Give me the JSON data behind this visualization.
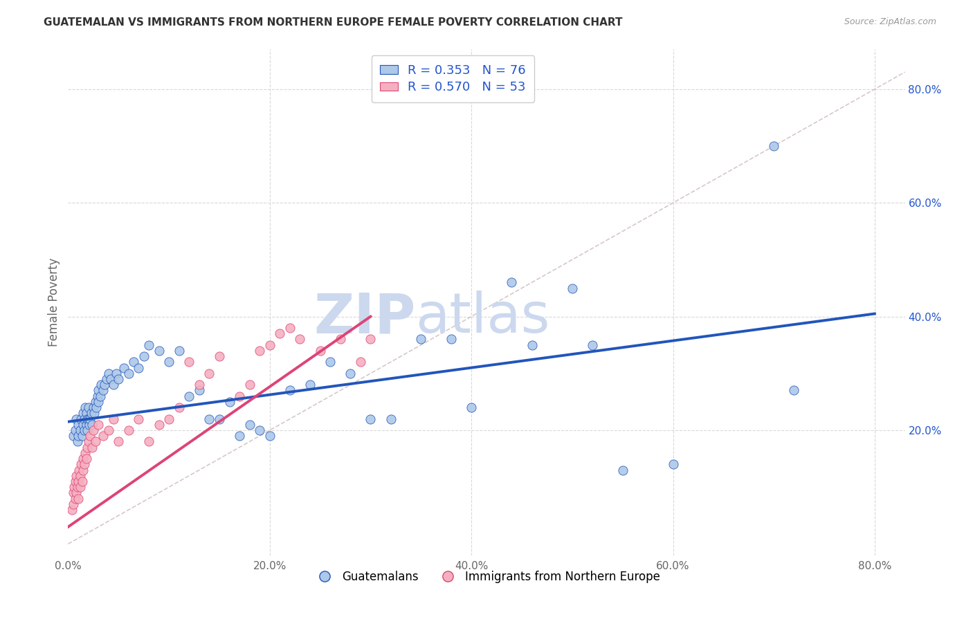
{
  "title": "GUATEMALAN VS IMMIGRANTS FROM NORTHERN EUROPE FEMALE POVERTY CORRELATION CHART",
  "source": "Source: ZipAtlas.com",
  "ylabel": "Female Poverty",
  "xlim": [
    0.0,
    0.83
  ],
  "ylim": [
    -0.02,
    0.87
  ],
  "xticks": [
    0.0,
    0.2,
    0.4,
    0.6,
    0.8
  ],
  "yticks_right": [
    0.2,
    0.4,
    0.6,
    0.8
  ],
  "background_color": "#ffffff",
  "grid_color": "#d8d8d8",
  "legend1_label": "R = 0.353   N = 76",
  "legend2_label": "R = 0.570   N = 53",
  "legend_color": "#2255cc",
  "scatter_blue_color": "#adc8e8",
  "scatter_pink_color": "#f5b0c0",
  "line_blue_color": "#2255bb",
  "line_pink_color": "#dd4477",
  "diagonal_color": "#ccbbbb",
  "watermark_zip": "ZIP",
  "watermark_atlas": "atlas",
  "watermark_color": "#ccd8ee",
  "blue_scatter_x": [
    0.005,
    0.007,
    0.008,
    0.009,
    0.01,
    0.01,
    0.012,
    0.013,
    0.014,
    0.015,
    0.015,
    0.016,
    0.016,
    0.017,
    0.018,
    0.018,
    0.019,
    0.019,
    0.02,
    0.02,
    0.021,
    0.022,
    0.023,
    0.024,
    0.025,
    0.026,
    0.027,
    0.028,
    0.029,
    0.03,
    0.03,
    0.032,
    0.033,
    0.035,
    0.036,
    0.038,
    0.04,
    0.042,
    0.045,
    0.048,
    0.05,
    0.055,
    0.06,
    0.065,
    0.07,
    0.075,
    0.08,
    0.09,
    0.1,
    0.11,
    0.12,
    0.13,
    0.14,
    0.15,
    0.16,
    0.17,
    0.18,
    0.19,
    0.2,
    0.22,
    0.24,
    0.26,
    0.28,
    0.3,
    0.32,
    0.35,
    0.38,
    0.4,
    0.44,
    0.46,
    0.5,
    0.52,
    0.55,
    0.6,
    0.7,
    0.72
  ],
  "blue_scatter_y": [
    0.19,
    0.2,
    0.22,
    0.18,
    0.21,
    0.19,
    0.2,
    0.22,
    0.19,
    0.23,
    0.21,
    0.22,
    0.2,
    0.24,
    0.21,
    0.23,
    0.22,
    0.2,
    0.22,
    0.24,
    0.21,
    0.22,
    0.23,
    0.21,
    0.24,
    0.23,
    0.25,
    0.24,
    0.26,
    0.25,
    0.27,
    0.26,
    0.28,
    0.27,
    0.28,
    0.29,
    0.3,
    0.29,
    0.28,
    0.3,
    0.29,
    0.31,
    0.3,
    0.32,
    0.31,
    0.33,
    0.35,
    0.34,
    0.32,
    0.34,
    0.26,
    0.27,
    0.22,
    0.22,
    0.25,
    0.19,
    0.21,
    0.2,
    0.19,
    0.27,
    0.28,
    0.32,
    0.3,
    0.22,
    0.22,
    0.36,
    0.36,
    0.24,
    0.46,
    0.35,
    0.45,
    0.35,
    0.13,
    0.14,
    0.7,
    0.27
  ],
  "pink_scatter_x": [
    0.004,
    0.005,
    0.005,
    0.006,
    0.007,
    0.007,
    0.008,
    0.008,
    0.009,
    0.01,
    0.01,
    0.011,
    0.012,
    0.012,
    0.013,
    0.014,
    0.015,
    0.015,
    0.016,
    0.017,
    0.018,
    0.019,
    0.02,
    0.022,
    0.024,
    0.025,
    0.027,
    0.03,
    0.035,
    0.04,
    0.045,
    0.05,
    0.06,
    0.07,
    0.08,
    0.09,
    0.1,
    0.11,
    0.12,
    0.13,
    0.14,
    0.15,
    0.17,
    0.18,
    0.19,
    0.2,
    0.21,
    0.22,
    0.23,
    0.25,
    0.27,
    0.29,
    0.3
  ],
  "pink_scatter_y": [
    0.06,
    0.09,
    0.07,
    0.1,
    0.08,
    0.11,
    0.09,
    0.12,
    0.1,
    0.08,
    0.11,
    0.13,
    0.1,
    0.12,
    0.14,
    0.11,
    0.13,
    0.15,
    0.14,
    0.16,
    0.15,
    0.17,
    0.18,
    0.19,
    0.17,
    0.2,
    0.18,
    0.21,
    0.19,
    0.2,
    0.22,
    0.18,
    0.2,
    0.22,
    0.18,
    0.21,
    0.22,
    0.24,
    0.32,
    0.28,
    0.3,
    0.33,
    0.26,
    0.28,
    0.34,
    0.35,
    0.37,
    0.38,
    0.36,
    0.34,
    0.36,
    0.32,
    0.36
  ],
  "blue_line_x": [
    0.0,
    0.8
  ],
  "blue_line_y": [
    0.215,
    0.405
  ],
  "pink_line_x": [
    0.0,
    0.3
  ],
  "pink_line_y": [
    0.03,
    0.4
  ]
}
